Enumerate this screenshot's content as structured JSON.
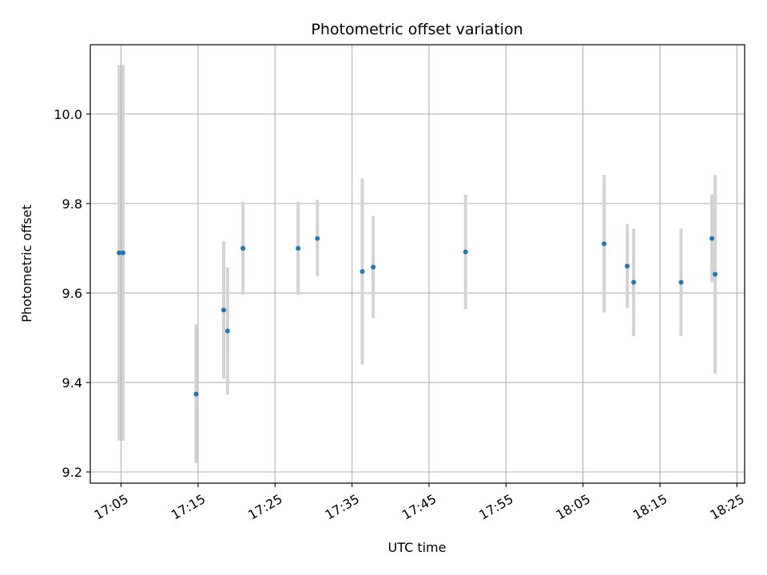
{
  "chart_data": {
    "type": "scatter",
    "title": "Photometric offset variation",
    "xlabel": "UTC time",
    "ylabel": "Photometric offset",
    "x_is_time": true,
    "xlim": [
      "17:01",
      "18:26"
    ],
    "ylim": [
      9.175,
      10.155
    ],
    "x_ticks": [
      "17:05",
      "17:15",
      "17:25",
      "17:35",
      "17:45",
      "17:55",
      "18:05",
      "18:15",
      "18:25"
    ],
    "y_ticks": [
      9.2,
      9.4,
      9.6,
      9.8,
      10.0
    ],
    "y_tick_labels": [
      "9.2",
      "9.4",
      "9.6",
      "9.8",
      "10.0"
    ],
    "grid": true,
    "marker_color": "#1f77b4",
    "errorbar_color": "#d3d3d3",
    "series": [
      {
        "points": [
          {
            "x": "17:04:45",
            "y": 9.69,
            "ylow": 9.27,
            "yhigh": 10.11
          },
          {
            "x": "17:05:15",
            "y": 9.69,
            "ylow": 9.27,
            "yhigh": 10.11
          },
          {
            "x": "17:14:45",
            "y": 9.374,
            "ylow": 9.22,
            "yhigh": 9.53
          },
          {
            "x": "17:18:20",
            "y": 9.562,
            "ylow": 9.408,
            "yhigh": 9.716
          },
          {
            "x": "17:18:50",
            "y": 9.515,
            "ylow": 9.373,
            "yhigh": 9.657
          },
          {
            "x": "17:20:50",
            "y": 9.7,
            "ylow": 9.596,
            "yhigh": 9.804
          },
          {
            "x": "17:28:00",
            "y": 9.7,
            "ylow": 9.596,
            "yhigh": 9.804
          },
          {
            "x": "17:30:30",
            "y": 9.722,
            "ylow": 9.638,
            "yhigh": 9.808
          },
          {
            "x": "17:36:20",
            "y": 9.648,
            "ylow": 9.44,
            "yhigh": 9.856
          },
          {
            "x": "17:37:45",
            "y": 9.658,
            "ylow": 9.544,
            "yhigh": 9.772
          },
          {
            "x": "17:49:45",
            "y": 9.692,
            "ylow": 9.564,
            "yhigh": 9.82
          },
          {
            "x": "18:07:45",
            "y": 9.71,
            "ylow": 9.556,
            "yhigh": 9.864
          },
          {
            "x": "18:10:45",
            "y": 9.66,
            "ylow": 9.566,
            "yhigh": 9.754
          },
          {
            "x": "18:11:35",
            "y": 9.624,
            "ylow": 9.504,
            "yhigh": 9.744
          },
          {
            "x": "18:17:45",
            "y": 9.624,
            "ylow": 9.504,
            "yhigh": 9.744
          },
          {
            "x": "18:21:45",
            "y": 9.722,
            "ylow": 9.624,
            "yhigh": 9.82
          },
          {
            "x": "18:22:10",
            "y": 9.642,
            "ylow": 9.42,
            "yhigh": 9.864
          }
        ]
      }
    ]
  }
}
